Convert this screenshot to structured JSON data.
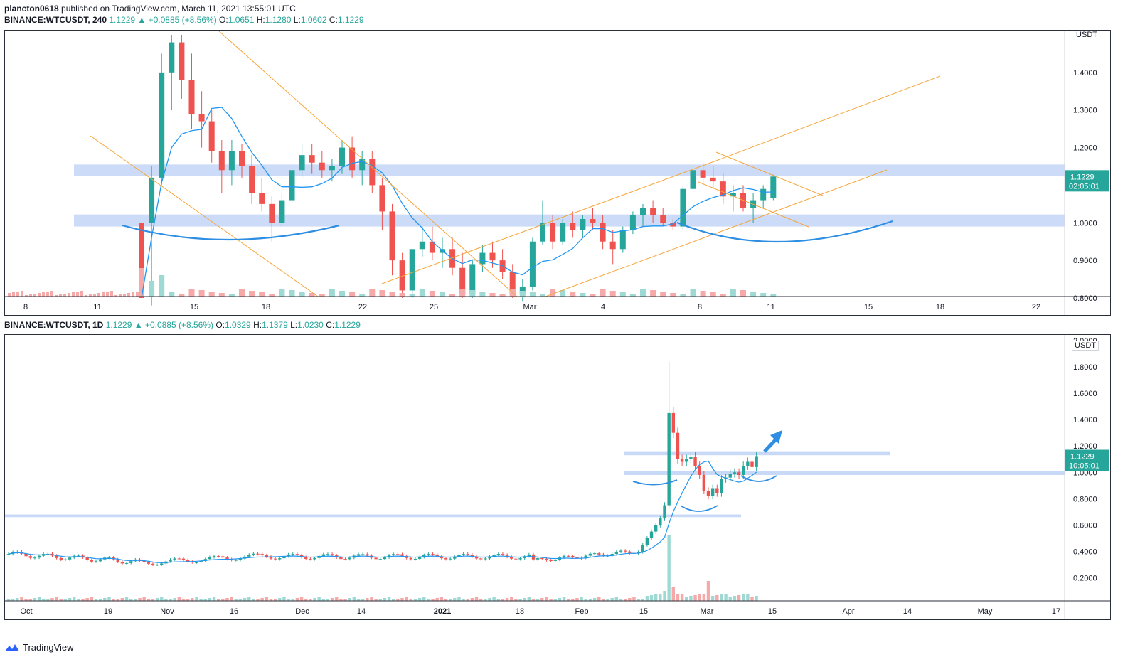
{
  "header": {
    "author": "plancton0618",
    "published": "published on TradingView.com, March 11, 2021 13:55:01 UTC"
  },
  "panel_top": {
    "symbol": "BINANCE:WTCUSDT, 240",
    "price": "1.1229",
    "change": "▲ +0.0885 (+8.56%)",
    "o_label": "O:",
    "o": "1.0651",
    "h_label": "H:",
    "h": "1.1280",
    "l_label": "L:",
    "l": "1.0602",
    "c_label": "C:",
    "c": "1.1229",
    "currency": "USDT",
    "price_tag": "1.1229",
    "countdown": "02:05:01"
  },
  "panel_bottom": {
    "symbol": "BINANCE:WTCUSDT, 1D",
    "price": "1.1229",
    "change": "▲ +0.0885 (+8.56%)",
    "o_label": "O:",
    "o": "1.0329",
    "h_label": "H:",
    "h": "1.1379",
    "l_label": "L:",
    "l": "1.0230",
    "c_label": "C:",
    "c": "1.1229",
    "currency": "USDT",
    "price_tag": "1.1229",
    "countdown": "10:05:01"
  },
  "footer": {
    "brand": "TradingView"
  },
  "colors": {
    "up": "#26a69a",
    "down": "#ef5350",
    "ma": "#2196f3",
    "trend": "#f7a53b",
    "zone": "#b9cff5",
    "arc": "#2d8ee3"
  },
  "chart_data": [
    {
      "type": "candlestick",
      "timeframe": "240",
      "ylim": [
        0.8,
        1.5
      ],
      "y_ticks": [
        "1.4000",
        "1.3000",
        "1.2000",
        "1.0000",
        "0.9000",
        "0.8000"
      ],
      "x_ticks": [
        "8",
        "11",
        "15",
        "18",
        "22",
        "25",
        "Mar",
        "4",
        "8",
        "11",
        "15",
        "18",
        "22"
      ],
      "zones": [
        [
          1.124,
          1.155
        ],
        [
          0.99,
          1.022
        ]
      ],
      "last_price": 1.1229,
      "ohlc": [
        [
          1.0,
          1.0,
          0.8,
          0.8
        ],
        [
          1.0,
          1.15,
          0.78,
          1.12
        ],
        [
          1.12,
          1.45,
          1.1,
          1.4
        ],
        [
          1.4,
          1.5,
          1.3,
          1.48
        ],
        [
          1.48,
          1.5,
          1.33,
          1.38
        ],
        [
          1.38,
          1.45,
          1.25,
          1.29
        ],
        [
          1.29,
          1.35,
          1.2,
          1.27
        ],
        [
          1.27,
          1.3,
          1.16,
          1.19
        ],
        [
          1.19,
          1.22,
          1.08,
          1.14
        ],
        [
          1.14,
          1.22,
          1.1,
          1.19
        ],
        [
          1.19,
          1.21,
          1.12,
          1.15
        ],
        [
          1.15,
          1.18,
          1.05,
          1.08
        ],
        [
          1.08,
          1.12,
          1.03,
          1.05
        ],
        [
          1.05,
          1.07,
          0.95,
          1.0
        ],
        [
          1.0,
          1.08,
          0.99,
          1.06
        ],
        [
          1.06,
          1.16,
          1.05,
          1.14
        ],
        [
          1.14,
          1.21,
          1.12,
          1.18
        ],
        [
          1.18,
          1.21,
          1.13,
          1.16
        ],
        [
          1.16,
          1.19,
          1.12,
          1.14
        ],
        [
          1.14,
          1.17,
          1.11,
          1.15
        ],
        [
          1.15,
          1.22,
          1.13,
          1.2
        ],
        [
          1.2,
          1.23,
          1.12,
          1.14
        ],
        [
          1.14,
          1.19,
          1.1,
          1.17
        ],
        [
          1.17,
          1.19,
          1.08,
          1.1
        ],
        [
          1.1,
          1.12,
          0.98,
          1.03
        ],
        [
          1.03,
          1.05,
          0.86,
          0.9
        ],
        [
          0.9,
          0.92,
          0.8,
          0.82
        ],
        [
          0.82,
          0.93,
          0.8,
          0.93
        ],
        [
          0.93,
          0.99,
          0.91,
          0.95
        ],
        [
          0.95,
          0.99,
          0.9,
          0.92
        ],
        [
          0.92,
          0.96,
          0.88,
          0.93
        ],
        [
          0.93,
          0.96,
          0.86,
          0.88
        ],
        [
          0.88,
          0.92,
          0.8,
          0.81
        ],
        [
          0.81,
          0.9,
          0.8,
          0.89
        ],
        [
          0.89,
          0.94,
          0.87,
          0.92
        ],
        [
          0.92,
          0.95,
          0.88,
          0.9
        ],
        [
          0.9,
          0.93,
          0.85,
          0.87
        ],
        [
          0.87,
          0.89,
          0.8,
          0.81
        ],
        [
          0.81,
          0.85,
          0.79,
          0.83
        ],
        [
          0.83,
          0.96,
          0.82,
          0.95
        ],
        [
          0.95,
          1.06,
          0.94,
          1.0
        ],
        [
          1.0,
          1.02,
          0.93,
          0.95
        ],
        [
          0.95,
          1.01,
          0.94,
          1.0
        ],
        [
          1.0,
          1.03,
          0.96,
          0.98
        ],
        [
          0.98,
          1.02,
          0.96,
          1.01
        ],
        [
          1.01,
          1.04,
          0.98,
          1.0
        ],
        [
          1.0,
          1.02,
          0.93,
          0.95
        ],
        [
          0.95,
          0.98,
          0.89,
          0.93
        ],
        [
          0.93,
          0.99,
          0.92,
          0.98
        ],
        [
          0.98,
          1.03,
          0.97,
          1.02
        ],
        [
          1.02,
          1.05,
          0.99,
          1.04
        ],
        [
          1.04,
          1.06,
          1.0,
          1.02
        ],
        [
          1.02,
          1.04,
          0.99,
          1.0
        ],
        [
          1.0,
          1.01,
          0.98,
          0.99
        ],
        [
          0.99,
          1.1,
          0.98,
          1.09
        ],
        [
          1.09,
          1.17,
          1.08,
          1.14
        ],
        [
          1.14,
          1.16,
          1.1,
          1.12
        ],
        [
          1.12,
          1.15,
          1.09,
          1.11
        ],
        [
          1.11,
          1.13,
          1.05,
          1.07
        ],
        [
          1.07,
          1.1,
          1.03,
          1.08
        ],
        [
          1.08,
          1.1,
          1.03,
          1.04
        ],
        [
          1.04,
          1.08,
          1.0,
          1.06
        ],
        [
          1.06,
          1.1,
          1.04,
          1.09
        ],
        [
          1.0651,
          1.128,
          1.0602,
          1.1229
        ]
      ]
    },
    {
      "type": "candlestick",
      "timeframe": "1D",
      "ylim": [
        0.1,
        2.0
      ],
      "y_ticks": [
        "2.0000",
        "1.8000",
        "1.6000",
        "1.4000",
        "1.2000",
        "1.0000",
        "0.8000",
        "0.6000",
        "0.4000",
        "0.2000"
      ],
      "x_ticks": [
        "Oct",
        "19",
        "Nov",
        "16",
        "Dec",
        "14",
        "2021",
        "18",
        "Feb",
        "15",
        "Mar",
        "15",
        "Apr",
        "14",
        "May",
        "17"
      ],
      "zones": [
        [
          1.13,
          1.16
        ],
        [
          0.98,
          1.01
        ],
        [
          0.66,
          0.68
        ]
      ],
      "last_price": 1.1229,
      "annotation": "blue arrow pointing up-right",
      "ohlc_summary": {
        "oct_to_feb_range": [
          0.24,
          0.46
        ],
        "feb_spike_high": 1.84,
        "mar_low": 0.66,
        "last": {
          "o": 1.0329,
          "h": 1.1379,
          "l": 1.023,
          "c": 1.1229
        }
      }
    }
  ]
}
